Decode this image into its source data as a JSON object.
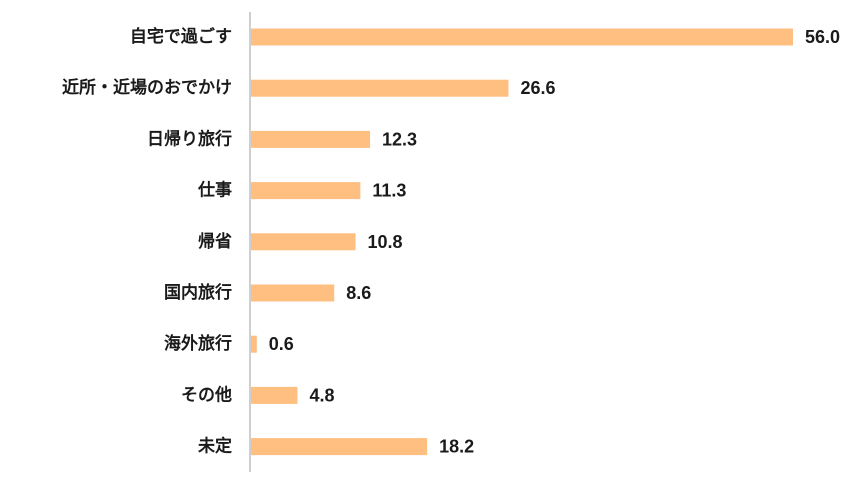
{
  "chart_data": {
    "type": "bar",
    "orientation": "horizontal",
    "categories": [
      "自宅で過ごす",
      "近所・近場のおでかけ",
      "日帰り旅行",
      "仕事",
      "帰省",
      "国内旅行",
      "海外旅行",
      "その他",
      "未定"
    ],
    "values": [
      56.0,
      26.6,
      12.3,
      11.3,
      10.8,
      8.6,
      0.6,
      4.8,
      18.2
    ],
    "value_labels": [
      "56.0",
      "26.6",
      "12.3",
      "11.3",
      "10.8",
      "8.6",
      "0.6",
      "4.8",
      "18.2"
    ],
    "xlim": [
      0,
      56.0
    ],
    "title": "",
    "xlabel": "",
    "ylabel": "",
    "grid": false,
    "legend": "none",
    "bar_color": "#FFBF80",
    "axis_color": "#BFBFBF",
    "text_color": "#1a1a1a"
  }
}
